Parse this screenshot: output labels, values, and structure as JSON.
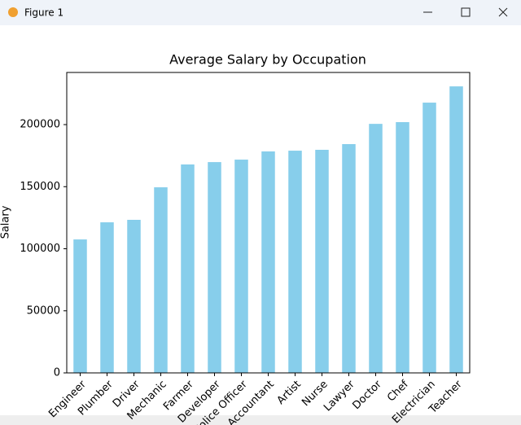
{
  "window": {
    "title": "Figure 1"
  },
  "chart_data": {
    "type": "bar",
    "title": "Average Salary by Occupation",
    "y_label": "Salary",
    "categories": [
      "Engineer",
      "Plumber",
      "Driver",
      "Mechanic",
      "Farmer",
      "Developer",
      "Police Officer",
      "Accountant",
      "Artist",
      "Nurse",
      "Lawyer",
      "Doctor",
      "Chef",
      "Electrician",
      "Teacher"
    ],
    "values": [
      107500,
      121300,
      123300,
      149500,
      167900,
      169800,
      171800,
      178400,
      179000,
      179700,
      184300,
      200600,
      202000,
      217700,
      230800
    ],
    "color": "#87ceeb",
    "ylim": [
      0,
      242000
    ],
    "yticks": [
      0,
      50000,
      100000,
      150000,
      200000
    ],
    "grid": false
  }
}
